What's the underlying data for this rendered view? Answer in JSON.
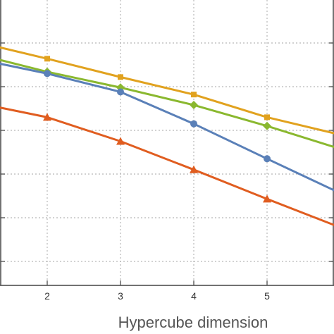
{
  "chart_data": {
    "type": "line",
    "title": "",
    "xlabel": "Hypercube dimension",
    "ylabel": "",
    "xlim": [
      0.6,
      5.95
    ],
    "ylim": [
      0,
      6.5
    ],
    "x_ticks": [
      2,
      3,
      4,
      5
    ],
    "grid": true,
    "series": [
      {
        "color": "#e1a21f",
        "marker": "square",
        "x": [
          0.6,
          2,
          3,
          4,
          5,
          5.95
        ],
        "y": [
          6.2,
          5.64,
          5.22,
          4.82,
          4.3,
          3.92
        ]
      },
      {
        "color": "#8ab82f",
        "marker": "diamond",
        "x": [
          0.6,
          2,
          3,
          4,
          5,
          5.95
        ],
        "y": [
          5.93,
          5.34,
          4.98,
          4.58,
          4.1,
          3.6
        ]
      },
      {
        "color": "#5a80b8",
        "marker": "circle",
        "x": [
          0.6,
          2,
          3,
          4,
          5,
          5.95
        ],
        "y": [
          5.79,
          5.3,
          4.88,
          4.15,
          3.35,
          2.6
        ]
      },
      {
        "color": "#e05d20",
        "marker": "triangle",
        "x": [
          0.6,
          2,
          3,
          4,
          5,
          5.95
        ],
        "y": [
          4.78,
          4.3,
          3.75,
          3.1,
          2.43,
          1.81
        ]
      }
    ]
  }
}
